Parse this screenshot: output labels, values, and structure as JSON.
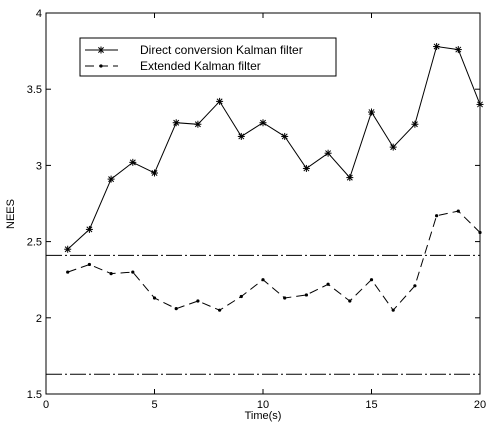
{
  "chart_data": {
    "type": "line",
    "title": "",
    "xlabel": "Time(s)",
    "ylabel": "NEES",
    "xlim": [
      0,
      20
    ],
    "ylim": [
      1.5,
      4
    ],
    "xticks": [
      0,
      5,
      10,
      15,
      20
    ],
    "yticks": [
      1.5,
      2,
      2.5,
      3,
      3.5,
      4
    ],
    "xtick_labels": [
      "0",
      "5",
      "10",
      "15",
      "20"
    ],
    "ytick_labels": [
      "1.5",
      "2",
      "2.5",
      "3",
      "3.5",
      "4"
    ],
    "grid": false,
    "legend_position": "top-left",
    "series": [
      {
        "name": "Direct conversion Kalman filter",
        "style": "solid",
        "marker": "asterisk",
        "color": "#000000",
        "x": [
          1,
          2,
          3,
          4,
          5,
          6,
          7,
          8,
          9,
          10,
          11,
          12,
          13,
          14,
          15,
          16,
          17,
          18,
          19,
          20
        ],
        "values": [
          2.45,
          2.58,
          2.91,
          3.02,
          2.95,
          3.28,
          3.27,
          3.42,
          3.19,
          3.28,
          3.19,
          2.98,
          3.08,
          2.92,
          3.35,
          3.12,
          3.27,
          3.78,
          3.76,
          3.4
        ]
      },
      {
        "name": "Extended Kalman filter",
        "style": "dashed",
        "marker": "dot",
        "color": "#000000",
        "x": [
          1,
          2,
          3,
          4,
          5,
          6,
          7,
          8,
          9,
          10,
          11,
          12,
          13,
          14,
          15,
          16,
          17,
          18,
          19,
          20
        ],
        "values": [
          2.3,
          2.35,
          2.29,
          2.3,
          2.13,
          2.06,
          2.11,
          2.05,
          2.14,
          2.25,
          2.13,
          2.15,
          2.22,
          2.11,
          2.25,
          2.05,
          2.21,
          2.67,
          2.7,
          2.56
        ]
      }
    ],
    "reference_lines": [
      {
        "y": 2.41,
        "style": "dash-dot"
      },
      {
        "y": 1.63,
        "style": "dash-dot"
      }
    ]
  }
}
